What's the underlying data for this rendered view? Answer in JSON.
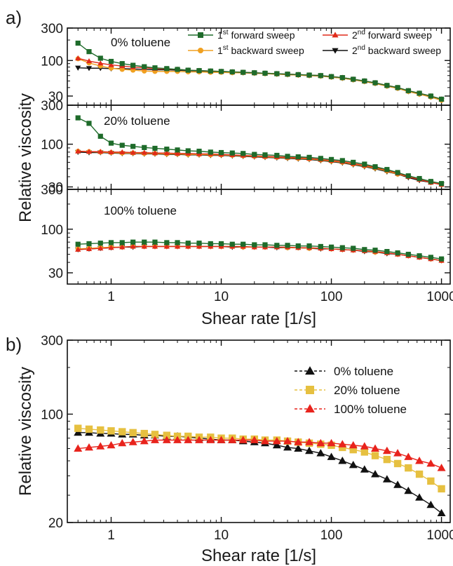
{
  "chart_data": [
    {
      "panel_letter": "a)",
      "type": "line",
      "xscale": "log",
      "yscale": "log",
      "xlabel": "Shear rate [1/s]",
      "ylabel": "Relative viscosity",
      "xlim": [
        0.4,
        1200
      ],
      "xticks": [
        {
          "v": 1,
          "label": "1"
        },
        {
          "v": 10,
          "label": "10"
        },
        {
          "v": 100,
          "label": "100"
        },
        {
          "v": 1000,
          "label": "1000"
        }
      ],
      "legend": {
        "position": "top",
        "items": [
          {
            "base": "1",
            "sup": "st",
            "text": " forward sweep",
            "color": "#1e6b2a",
            "marker": "square"
          },
          {
            "base": "2",
            "sup": "nd",
            "text": " forward sweep",
            "color": "#e02a1a",
            "marker": "triangle-up"
          },
          {
            "base": "1",
            "sup": "st",
            "text": " backward sweep",
            "color": "#f0a020",
            "marker": "circle"
          },
          {
            "base": "2",
            "sup": "nd",
            "text": " backward sweep",
            "color": "#111111",
            "marker": "triangle-down"
          }
        ]
      },
      "subplots": [
        {
          "label": "0% toluene",
          "ylim": [
            22,
            300
          ],
          "yticks": [
            {
              "v": 30,
              "label": "30"
            },
            {
              "v": 100,
              "label": "100"
            },
            {
              "v": 300,
              "label": "300"
            }
          ],
          "x": [
            0.5,
            0.63,
            0.8,
            1.0,
            1.26,
            1.58,
            2.0,
            2.5,
            3.2,
            4.0,
            5.0,
            6.3,
            8.0,
            10,
            12.6,
            15.8,
            20,
            25,
            32,
            40,
            50,
            63,
            80,
            100,
            126,
            158,
            200,
            250,
            320,
            400,
            500,
            630,
            800,
            1000
          ],
          "series": [
            {
              "name": "1st forward sweep",
              "color": "#1e6b2a",
              "marker": "square",
              "values": [
                180,
                135,
                108,
                97,
                90,
                85,
                81,
                78,
                76,
                74,
                72,
                71,
                70,
                69,
                68,
                67,
                66,
                65,
                64,
                63,
                62,
                61,
                60,
                58,
                56,
                53,
                50,
                47,
                43,
                40,
                36,
                33,
                30,
                27
              ]
            },
            {
              "name": "2nd forward sweep",
              "color": "#e02a1a",
              "marker": "triangle-up",
              "values": [
                108,
                98,
                91,
                86,
                83,
                80,
                78,
                76,
                75,
                74,
                72,
                71,
                70,
                69,
                68,
                67,
                66,
                65,
                64,
                63,
                62,
                61,
                60,
                58,
                56,
                53,
                50,
                47,
                43,
                40,
                36,
                33,
                30,
                27
              ]
            },
            {
              "name": "1st backward sweep",
              "color": "#f0a020",
              "marker": "circle",
              "values": [
                106,
                92,
                83,
                77,
                74,
                72,
                70,
                69,
                69,
                69,
                68,
                68,
                67,
                67,
                66,
                66,
                65,
                64,
                63,
                62,
                61,
                60,
                59,
                57,
                55,
                52,
                49,
                46,
                42,
                39,
                35,
                32,
                29,
                26
              ]
            },
            {
              "name": "2nd backward sweep",
              "color": "#111111",
              "marker": "triangle-down",
              "values": [
                78,
                77,
                77,
                76,
                76,
                75,
                74,
                73,
                73,
                72,
                71,
                70,
                69,
                68,
                67,
                66,
                65,
                64,
                63,
                62,
                61,
                60,
                59,
                57,
                55,
                52,
                49,
                46,
                42,
                39,
                35,
                32,
                29,
                26
              ]
            }
          ]
        },
        {
          "label": "20% toluene",
          "ylim": [
            28,
            300
          ],
          "yticks": [
            {
              "v": 30,
              "label": "30"
            },
            {
              "v": 100,
              "label": "100"
            },
            {
              "v": 300,
              "label": "300"
            }
          ],
          "x": [
            0.5,
            0.63,
            0.8,
            1.0,
            1.26,
            1.58,
            2.0,
            2.5,
            3.2,
            4.0,
            5.0,
            6.3,
            8.0,
            10,
            12.6,
            15.8,
            20,
            25,
            32,
            40,
            50,
            63,
            80,
            100,
            126,
            158,
            200,
            250,
            320,
            400,
            500,
            630,
            800,
            1000
          ],
          "series": [
            {
              "name": "1st forward sweep",
              "color": "#1e6b2a",
              "marker": "square",
              "values": [
                210,
                180,
                125,
                103,
                97,
                94,
                91,
                89,
                87,
                85,
                83,
                82,
                80,
                79,
                78,
                77,
                75,
                74,
                73,
                71,
                70,
                69,
                67,
                65,
                63,
                60,
                57,
                53,
                49,
                45,
                41,
                38,
                35,
                33
              ]
            },
            {
              "name": "2nd forward sweep",
              "color": "#e02a1a",
              "marker": "triangle-up",
              "values": [
                82,
                81,
                81,
                80,
                80,
                79,
                79,
                78,
                78,
                77,
                77,
                76,
                76,
                75,
                74,
                73,
                72,
                71,
                70,
                69,
                68,
                67,
                65,
                63,
                61,
                58,
                55,
                52,
                48,
                44,
                40,
                37,
                34,
                32
              ]
            },
            {
              "name": "1st backward sweep",
              "color": "#f0a020",
              "marker": "circle",
              "values": [
                82,
                81,
                80,
                79,
                78,
                78,
                77,
                77,
                76,
                76,
                75,
                75,
                74,
                74,
                73,
                72,
                71,
                70,
                69,
                68,
                67,
                66,
                64,
                62,
                60,
                57,
                54,
                51,
                47,
                43,
                40,
                37,
                34,
                32
              ]
            },
            {
              "name": "2nd backward sweep",
              "color": "#111111",
              "marker": "triangle-down",
              "values": [
                80,
                79,
                79,
                78,
                77,
                77,
                76,
                76,
                75,
                75,
                74,
                74,
                73,
                73,
                72,
                71,
                70,
                69,
                68,
                67,
                66,
                65,
                63,
                61,
                59,
                56,
                53,
                50,
                46,
                43,
                39,
                36,
                34,
                32
              ]
            }
          ]
        },
        {
          "label": "100% toluene",
          "ylim": [
            22,
            300
          ],
          "yticks": [
            {
              "v": 30,
              "label": "30"
            },
            {
              "v": 100,
              "label": "100"
            },
            {
              "v": 300,
              "label": "300"
            }
          ],
          "x": [
            0.5,
            0.63,
            0.8,
            1.0,
            1.26,
            1.58,
            2.0,
            2.5,
            3.2,
            4.0,
            5.0,
            6.3,
            8.0,
            10,
            12.6,
            15.8,
            20,
            25,
            32,
            40,
            50,
            63,
            80,
            100,
            126,
            158,
            200,
            250,
            320,
            400,
            500,
            630,
            800,
            1000
          ],
          "series": [
            {
              "name": "1st forward sweep",
              "color": "#1e6b2a",
              "marker": "square",
              "values": [
                66,
                67,
                68,
                69,
                69,
                70,
                70,
                70,
                69,
                69,
                68,
                68,
                67,
                67,
                66,
                66,
                65,
                65,
                64,
                64,
                63,
                63,
                62,
                61,
                60,
                59,
                57,
                56,
                54,
                52,
                50,
                48,
                46,
                44
              ]
            },
            {
              "name": "2nd forward sweep",
              "color": "#e02a1a",
              "marker": "triangle-up",
              "values": [
                57,
                58,
                59,
                60,
                61,
                62,
                62,
                62,
                62,
                62,
                62,
                62,
                62,
                62,
                62,
                62,
                61,
                61,
                61,
                61,
                60,
                60,
                59,
                58,
                57,
                56,
                55,
                54,
                52,
                50,
                48,
                46,
                44,
                42
              ]
            },
            {
              "name": "1st backward sweep",
              "color": "#f0a020",
              "marker": "circle",
              "values": [
                58,
                59,
                60,
                61,
                61,
                62,
                62,
                62,
                62,
                62,
                62,
                62,
                62,
                62,
                62,
                61,
                61,
                61,
                61,
                60,
                60,
                59,
                59,
                58,
                57,
                56,
                55,
                53,
                52,
                50,
                48,
                46,
                44,
                42
              ]
            },
            {
              "name": "2nd backward sweep",
              "color": "#111111",
              "marker": "triangle-down",
              "values": [
                57,
                58,
                59,
                60,
                61,
                61,
                62,
                62,
                62,
                62,
                62,
                62,
                62,
                62,
                61,
                61,
                61,
                61,
                60,
                60,
                60,
                59,
                58,
                58,
                57,
                56,
                54,
                53,
                51,
                50,
                48,
                46,
                44,
                42
              ]
            }
          ]
        }
      ]
    },
    {
      "panel_letter": "b)",
      "type": "line",
      "xscale": "log",
      "yscale": "log",
      "xlabel": "Shear rate [1/s]",
      "ylabel": "Relative viscosity",
      "xlim": [
        0.4,
        1200
      ],
      "ylim": [
        20,
        300
      ],
      "grid": false,
      "xticks": [
        {
          "v": 1,
          "label": "1"
        },
        {
          "v": 10,
          "label": "10"
        },
        {
          "v": 100,
          "label": "100"
        },
        {
          "v": 1000,
          "label": "1000"
        }
      ],
      "yticks": [
        {
          "v": 20,
          "label": "20"
        },
        {
          "v": 100,
          "label": "100"
        },
        {
          "v": 300,
          "label": "300"
        }
      ],
      "legend": {
        "position": "top-right"
      },
      "x": [
        0.5,
        0.63,
        0.8,
        1.0,
        1.26,
        1.58,
        2.0,
        2.5,
        3.2,
        4.0,
        5.0,
        6.3,
        8.0,
        10,
        12.6,
        15.8,
        20,
        25,
        32,
        40,
        50,
        63,
        80,
        100,
        126,
        158,
        200,
        250,
        320,
        400,
        500,
        630,
        800,
        1000
      ],
      "series": [
        {
          "name": "0% toluene",
          "color": "#111111",
          "marker": "triangle-up",
          "values": [
            76,
            76,
            75,
            75,
            74,
            74,
            73,
            73,
            72,
            72,
            71,
            70,
            69,
            68,
            68,
            67,
            66,
            65,
            63,
            61,
            60,
            58,
            56,
            53,
            50,
            47,
            44,
            41,
            38,
            35,
            32,
            29,
            26,
            23
          ]
        },
        {
          "name": "20% toluene",
          "color": "#e6c040",
          "marker": "square",
          "values": [
            81,
            80,
            79,
            78,
            77,
            76,
            75,
            74,
            73,
            72,
            72,
            71,
            71,
            70,
            70,
            69,
            69,
            68,
            68,
            67,
            66,
            65,
            64,
            63,
            61,
            59,
            57,
            54,
            51,
            48,
            45,
            41,
            37,
            33
          ]
        },
        {
          "name": "100% toluene",
          "color": "#e8231c",
          "marker": "triangle-up",
          "values": [
            60,
            61,
            62,
            63,
            65,
            66,
            67,
            68,
            68,
            68,
            68,
            68,
            68,
            68,
            68,
            68,
            68,
            67,
            67,
            67,
            66,
            66,
            65,
            65,
            64,
            63,
            62,
            60,
            58,
            56,
            53,
            50,
            48,
            45
          ]
        }
      ]
    }
  ]
}
